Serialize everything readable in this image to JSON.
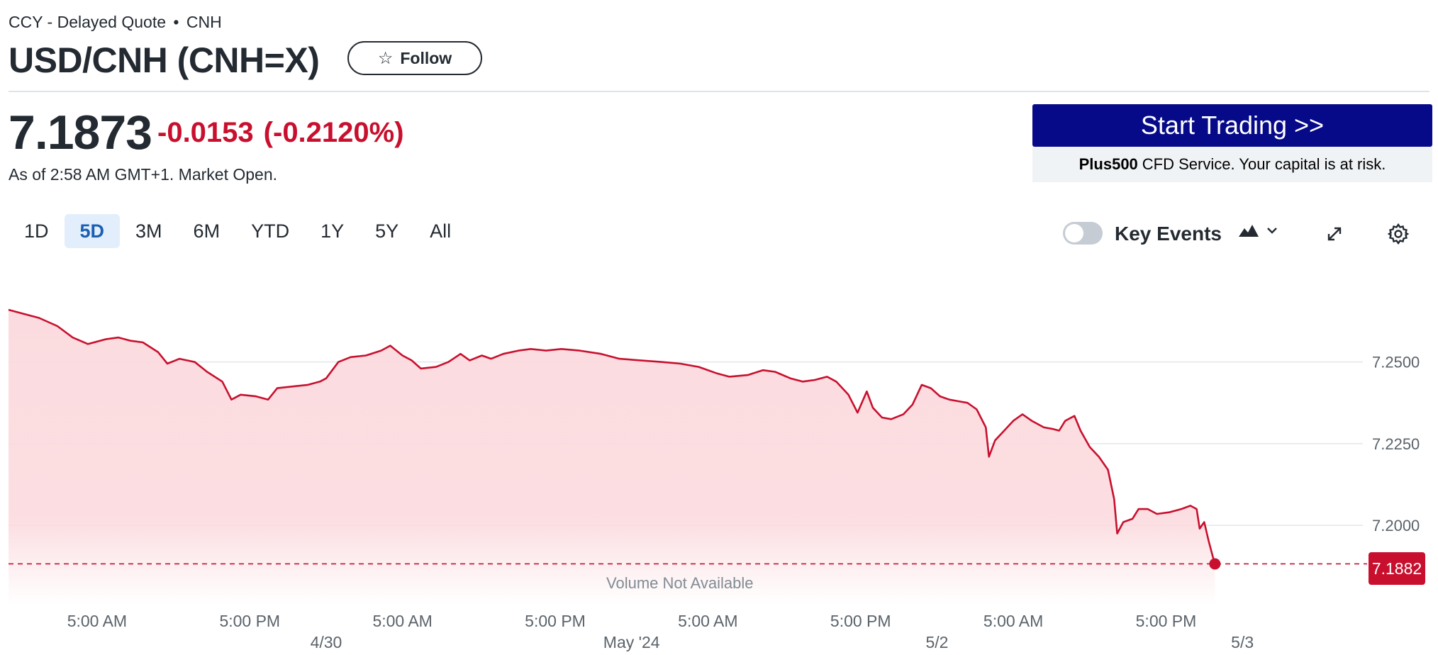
{
  "header": {
    "exchange": "CCY - Delayed Quote",
    "separator": "•",
    "currency": "CNH",
    "title": "USD/CNH (CNH=X)",
    "follow_label": "Follow"
  },
  "quote": {
    "price": "7.1873",
    "change": "-0.0153",
    "change_pct": "(-0.2120%)",
    "as_of": "As of 2:58 AM GMT+1. Market Open."
  },
  "ad": {
    "button_label": "Start Trading >>",
    "brand": "Plus500",
    "disclaimer": "CFD Service. Your capital is at risk."
  },
  "range_tabs": [
    {
      "label": "1D",
      "active": false
    },
    {
      "label": "5D",
      "active": true
    },
    {
      "label": "3M",
      "active": false
    },
    {
      "label": "6M",
      "active": false
    },
    {
      "label": "YTD",
      "active": false
    },
    {
      "label": "1Y",
      "active": false
    },
    {
      "label": "5Y",
      "active": false
    },
    {
      "label": "All",
      "active": false
    }
  ],
  "controls": {
    "key_events_label": "Key Events",
    "key_events_on": false,
    "chart_type_icon": "mountain-chart-icon",
    "expand_icon": "expand-icon",
    "settings_icon": "gear-icon"
  },
  "colors": {
    "line": "#c8102e",
    "fill": "#fbd9dd",
    "accent": "#1a5fb4",
    "ad_bg": "#060a88"
  },
  "chart_data": {
    "type": "area",
    "x_tick_labels": [
      {
        "t": 0.25,
        "label": "5:00 AM"
      },
      {
        "t": 0.75,
        "label": "5:00 PM"
      },
      {
        "t": 1.25,
        "label": "5:00 AM"
      },
      {
        "t": 1.75,
        "label": "5:00 PM"
      },
      {
        "t": 2.25,
        "label": "5:00 AM"
      },
      {
        "t": 2.75,
        "label": "5:00 PM"
      },
      {
        "t": 3.25,
        "label": "5:00 AM"
      },
      {
        "t": 3.75,
        "label": "5:00 PM"
      }
    ],
    "date_labels": [
      {
        "t": 1.0,
        "label": "4/30"
      },
      {
        "t": 2.0,
        "label": "May '24"
      },
      {
        "t": 3.0,
        "label": "5/2"
      },
      {
        "t": 4.0,
        "label": "5/3"
      }
    ],
    "y_ticks": [
      7.25,
      7.225,
      7.2
    ],
    "y_tick_labels": [
      "7.2500",
      "7.2250",
      "7.2000"
    ],
    "ylim": [
      7.1755,
      7.2725
    ],
    "xlim": [
      -0.04,
      4.32
    ],
    "last_value": 7.1882,
    "last_value_label": "7.1882",
    "volume_note": "Volume Not Available",
    "grid": true,
    "points": [
      [
        -0.04,
        7.266
      ],
      [
        0.0,
        7.265
      ],
      [
        0.06,
        7.2635
      ],
      [
        0.12,
        7.261
      ],
      [
        0.17,
        7.2575
      ],
      [
        0.22,
        7.2555
      ],
      [
        0.28,
        7.257
      ],
      [
        0.32,
        7.2575
      ],
      [
        0.36,
        7.2565
      ],
      [
        0.4,
        7.256
      ],
      [
        0.45,
        7.253
      ],
      [
        0.48,
        7.2495
      ],
      [
        0.52,
        7.251
      ],
      [
        0.57,
        7.25
      ],
      [
        0.61,
        7.247
      ],
      [
        0.66,
        7.244
      ],
      [
        0.69,
        7.2385
      ],
      [
        0.72,
        7.24
      ],
      [
        0.77,
        7.2395
      ],
      [
        0.81,
        7.2385
      ],
      [
        0.84,
        7.242
      ],
      [
        0.89,
        7.2425
      ],
      [
        0.94,
        7.243
      ],
      [
        0.98,
        7.244
      ],
      [
        1.0,
        7.245
      ],
      [
        1.04,
        7.25
      ],
      [
        1.08,
        7.2515
      ],
      [
        1.13,
        7.252
      ],
      [
        1.18,
        7.2535
      ],
      [
        1.21,
        7.255
      ],
      [
        1.25,
        7.252
      ],
      [
        1.28,
        7.2505
      ],
      [
        1.31,
        7.248
      ],
      [
        1.36,
        7.2485
      ],
      [
        1.4,
        7.25
      ],
      [
        1.44,
        7.2525
      ],
      [
        1.47,
        7.2505
      ],
      [
        1.51,
        7.252
      ],
      [
        1.54,
        7.251
      ],
      [
        1.58,
        7.2525
      ],
      [
        1.63,
        7.2535
      ],
      [
        1.67,
        7.254
      ],
      [
        1.72,
        7.2535
      ],
      [
        1.77,
        7.254
      ],
      [
        1.83,
        7.2535
      ],
      [
        1.9,
        7.2525
      ],
      [
        1.96,
        7.251
      ],
      [
        2.03,
        7.2505
      ],
      [
        2.1,
        7.25
      ],
      [
        2.16,
        7.2495
      ],
      [
        2.22,
        7.2485
      ],
      [
        2.28,
        7.2465
      ],
      [
        2.32,
        7.2455
      ],
      [
        2.38,
        7.246
      ],
      [
        2.43,
        7.2475
      ],
      [
        2.47,
        7.247
      ],
      [
        2.52,
        7.245
      ],
      [
        2.56,
        7.244
      ],
      [
        2.6,
        7.2445
      ],
      [
        2.64,
        7.2455
      ],
      [
        2.67,
        7.244
      ],
      [
        2.71,
        7.24
      ],
      [
        2.74,
        7.2345
      ],
      [
        2.77,
        7.241
      ],
      [
        2.79,
        7.236
      ],
      [
        2.82,
        7.233
      ],
      [
        2.85,
        7.2325
      ],
      [
        2.89,
        7.234
      ],
      [
        2.92,
        7.237
      ],
      [
        2.95,
        7.243
      ],
      [
        2.98,
        7.242
      ],
      [
        3.01,
        7.2395
      ],
      [
        3.04,
        7.2385
      ],
      [
        3.07,
        7.238
      ],
      [
        3.1,
        7.2375
      ],
      [
        3.13,
        7.2355
      ],
      [
        3.16,
        7.23
      ],
      [
        3.17,
        7.221
      ],
      [
        3.19,
        7.226
      ],
      [
        3.22,
        7.229
      ],
      [
        3.25,
        7.232
      ],
      [
        3.28,
        7.234
      ],
      [
        3.31,
        7.232
      ],
      [
        3.35,
        7.23
      ],
      [
        3.38,
        7.2295
      ],
      [
        3.4,
        7.229
      ],
      [
        3.42,
        7.232
      ],
      [
        3.45,
        7.2335
      ],
      [
        3.47,
        7.229
      ],
      [
        3.5,
        7.224
      ],
      [
        3.53,
        7.221
      ],
      [
        3.56,
        7.217
      ],
      [
        3.58,
        7.208
      ],
      [
        3.59,
        7.1975
      ],
      [
        3.61,
        7.201
      ],
      [
        3.64,
        7.202
      ],
      [
        3.66,
        7.205
      ],
      [
        3.69,
        7.205
      ],
      [
        3.72,
        7.2035
      ],
      [
        3.76,
        7.204
      ],
      [
        3.8,
        7.205
      ],
      [
        3.83,
        7.206
      ],
      [
        3.85,
        7.205
      ],
      [
        3.86,
        7.199
      ],
      [
        3.875,
        7.201
      ],
      [
        3.89,
        7.195
      ],
      [
        3.91,
        7.188
      ]
    ]
  }
}
